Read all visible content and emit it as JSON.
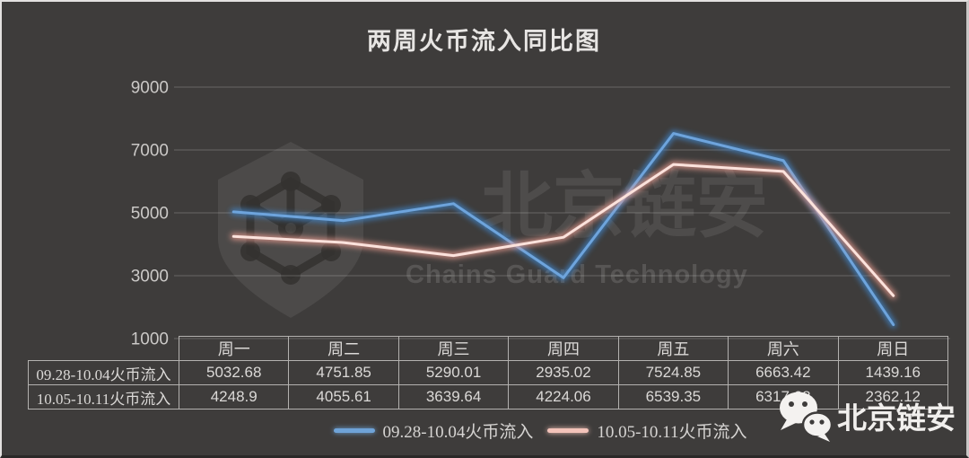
{
  "title": "两周火币流入同比图",
  "watermark": {
    "name_cn": "北京链安",
    "name_en": "Chains Guard Technology"
  },
  "footer": {
    "brand": "北京链安"
  },
  "chart_data": {
    "type": "line",
    "title": "两周火币流入同比图",
    "categories": [
      "周一",
      "周二",
      "周三",
      "周四",
      "周五",
      "周六",
      "周日"
    ],
    "series": [
      {
        "name": "09.28-10.04火币流入",
        "color": "#5b9bd5",
        "glow_color": "#3f84c8",
        "core_color": "#6ea4dc",
        "values": [
          5032.68,
          4751.85,
          5290.01,
          2935.02,
          7524.85,
          6663.42,
          1439.16
        ]
      },
      {
        "name": "10.05-10.11火币流入",
        "color": "#f2bdb3",
        "glow_color": "#e79b90",
        "core_color": "#fbe2dc",
        "values": [
          4248.9,
          4055.61,
          3639.64,
          4224.06,
          6539.35,
          6317.68,
          2362.12
        ]
      }
    ],
    "ylim": [
      1000,
      9000
    ],
    "yticks": [
      1000,
      3000,
      5000,
      7000,
      9000
    ],
    "grid": "horizontal",
    "legend_position": "bottom"
  },
  "table": {
    "headers": [
      "周一",
      "周二",
      "周三",
      "周四",
      "周五",
      "周六",
      "周日"
    ],
    "rows": [
      {
        "label": "09.28-10.04火币流入",
        "values": [
          "5032.68",
          "4751.85",
          "5290.01",
          "2935.02",
          "7524.85",
          "6663.42",
          "1439.16"
        ]
      },
      {
        "label": "10.05-10.11火币流入",
        "values": [
          "4248.9",
          "4055.61",
          "3639.64",
          "4224.06",
          "6539.35",
          "6317.68",
          "2362.12"
        ]
      }
    ]
  },
  "legend": {
    "items": [
      {
        "label": "09.28-10.04火币流入",
        "color": "#6fa3d8"
      },
      {
        "label": "10.05-10.11火币流入",
        "color": "#f3c3ba"
      }
    ]
  },
  "colors": {
    "background": "#3e3c3b",
    "gridline": "rgba(255,255,255,0.22)",
    "table_border": "#b3b1af",
    "text": "#dbd9d7"
  }
}
